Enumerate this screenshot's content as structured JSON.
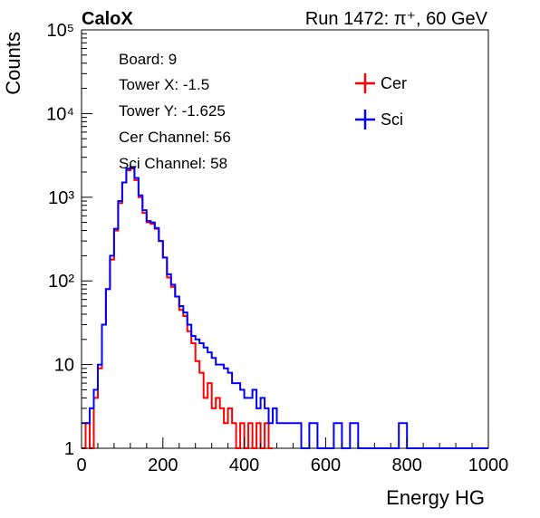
{
  "header": {
    "left": "CaloX",
    "right": "Run 1472:   π⁺, 60 GeV"
  },
  "info_box": [
    "Board: 9",
    "Tower X: -1.5",
    "Tower Y: -1.625",
    "Cer Channel: 56",
    "Sci Channel: 58"
  ],
  "colors": {
    "cer": "#ff0000",
    "sci": "#0000ff",
    "axis": "#000000"
  },
  "chart_data": {
    "type": "line",
    "xlabel": "Energy HG",
    "ylabel": "Counts",
    "xlim": [
      0,
      1000
    ],
    "ylim": [
      1,
      100000
    ],
    "yscale": "log",
    "x_ticks": [
      "0",
      "200",
      "400",
      "600",
      "800",
      "1000"
    ],
    "x_tick_values": [
      0,
      200,
      400,
      600,
      800,
      1000
    ],
    "y_ticks": [
      "1",
      "10",
      "10²",
      "10³",
      "10⁴",
      "10⁵"
    ],
    "y_tick_values": [
      1,
      10,
      100,
      1000,
      10000,
      100000
    ],
    "legend": {
      "position": "top-right",
      "entries": [
        "Cer",
        "Sci"
      ]
    },
    "series": [
      {
        "name": "Cer",
        "color": "#ff0000",
        "x": [
          0,
          10,
          20,
          30,
          40,
          50,
          60,
          70,
          80,
          90,
          100,
          110,
          120,
          130,
          140,
          150,
          160,
          170,
          180,
          190,
          200,
          210,
          220,
          230,
          240,
          250,
          260,
          270,
          280,
          290,
          300,
          310,
          320,
          330,
          340,
          350,
          360,
          370,
          380,
          390,
          400,
          410,
          420,
          430,
          440,
          450,
          460,
          470
        ],
        "y": [
          1,
          2,
          1,
          4,
          9,
          30,
          80,
          180,
          400,
          850,
          1500,
          2100,
          2200,
          1600,
          1000,
          650,
          500,
          480,
          420,
          300,
          190,
          110,
          85,
          65,
          45,
          38,
          25,
          18,
          11,
          8,
          4,
          6,
          3,
          4,
          3,
          2,
          3,
          2,
          1,
          2,
          1,
          2,
          1,
          2,
          1,
          2,
          1,
          1
        ]
      },
      {
        "name": "Sci",
        "color": "#0000ff",
        "x": [
          0,
          10,
          20,
          30,
          40,
          50,
          60,
          70,
          80,
          90,
          100,
          110,
          120,
          130,
          140,
          150,
          160,
          170,
          180,
          190,
          200,
          210,
          220,
          230,
          240,
          250,
          260,
          270,
          280,
          290,
          300,
          310,
          320,
          330,
          340,
          350,
          360,
          370,
          380,
          390,
          400,
          410,
          420,
          430,
          440,
          450,
          460,
          470,
          480,
          490,
          500,
          520,
          540,
          560,
          580,
          600,
          620,
          640,
          660,
          680,
          700,
          720,
          740,
          760,
          780,
          800,
          820,
          840,
          860,
          880,
          900,
          920,
          940,
          960,
          980,
          1000
        ],
        "y": [
          2,
          2,
          3,
          5,
          10,
          30,
          80,
          200,
          420,
          900,
          1500,
          2200,
          2300,
          1700,
          1050,
          700,
          520,
          500,
          430,
          300,
          190,
          120,
          90,
          65,
          50,
          42,
          30,
          22,
          20,
          18,
          16,
          14,
          12,
          10,
          10,
          9,
          8,
          6,
          6,
          5,
          4,
          4,
          5,
          3,
          4,
          3,
          2,
          3,
          2,
          2,
          2,
          2,
          1,
          2,
          1,
          1,
          2,
          1,
          2,
          1,
          1,
          1,
          1,
          1,
          2,
          1,
          1,
          1,
          1,
          1,
          1,
          1,
          1,
          1,
          1,
          1
        ]
      }
    ]
  }
}
